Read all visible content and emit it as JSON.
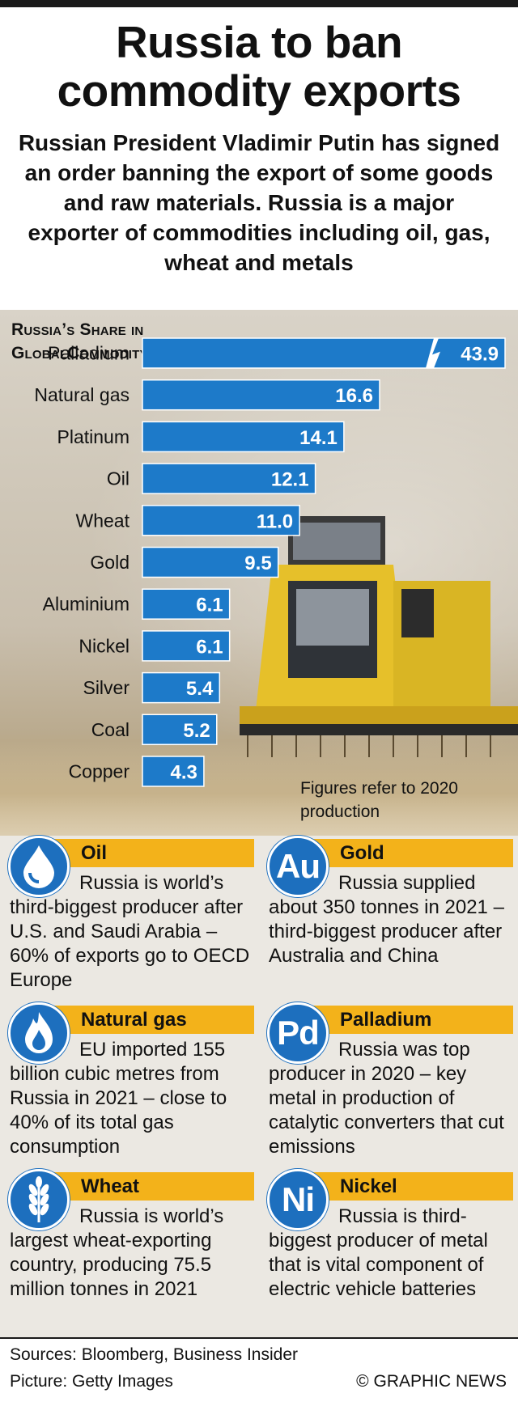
{
  "headline": "Russia to ban commodity exports",
  "deck": "Russian President Vladimir Putin has signed an order banning the export of some goods and raw materials. Russia is a major exporter of commodities including oil, gas, wheat and metals",
  "chart_data": {
    "type": "bar",
    "orientation": "horizontal",
    "title_line1": "Russia’s Share in",
    "title_line2": "GlobalCommodity Production",
    "unit": "(%)",
    "categories": [
      "Palladium",
      "Natural gas",
      "Platinum",
      "Oil",
      "Wheat",
      "Gold",
      "Aluminium",
      "Nickel",
      "Silver",
      "Coal",
      "Copper"
    ],
    "values": [
      43.9,
      16.6,
      14.1,
      12.1,
      11.0,
      9.5,
      6.1,
      6.1,
      5.4,
      5.2,
      4.3
    ],
    "value_labels": [
      "43.9",
      "16.6",
      "14.1",
      "12.1",
      "11.0",
      "9.5",
      "6.1",
      "6.1",
      "5.4",
      "5.2",
      "4.3"
    ],
    "broken_axis_categories": [
      "Palladium"
    ],
    "bar_color": "#1d7ac9",
    "note": "Figures refer to 2020 production"
  },
  "cards": [
    {
      "badge": "oil-drop-icon",
      "badge_text": "",
      "title": "Oil",
      "body": "Russia is world’s third-biggest producer after U.S. and Saudi Arabia – 60% of exports go to OECD Europe"
    },
    {
      "badge": "gold-symbol-badge",
      "badge_text": "Au",
      "title": "Gold",
      "body": "Russia supplied about 350 tonnes in 2021 – third-biggest producer after Australia and China"
    },
    {
      "badge": "gas-flame-icon",
      "badge_text": "",
      "title": "Natural gas",
      "body": "EU imported 155 billion cubic metres from Russia in 2021 – close to 40% of its total gas consumption"
    },
    {
      "badge": "palladium-symbol-badge",
      "badge_text": "Pd",
      "title": "Palladium",
      "body": "Russia was top producer in 2020 – key metal in production of catalytic converters that cut emissions"
    },
    {
      "badge": "wheat-ear-icon",
      "badge_text": "",
      "title": "Wheat",
      "body": "Russia is world’s largest wheat-exporting country, producing 75.5 million tonnes in 2021"
    },
    {
      "badge": "nickel-symbol-badge",
      "badge_text": "Ni",
      "title": "Nickel",
      "body": "Russia is third-biggest producer of metal that is vital component of electric vehicle batteries"
    }
  ],
  "colors": {
    "accent_band": "#f3b21a",
    "badge_blue": "#1d6fbe"
  },
  "footer": {
    "sources": "Sources: Bloomberg, Business Insider",
    "picture": "Picture: Getty Images",
    "credit": "© GRAPHIC NEWS"
  }
}
